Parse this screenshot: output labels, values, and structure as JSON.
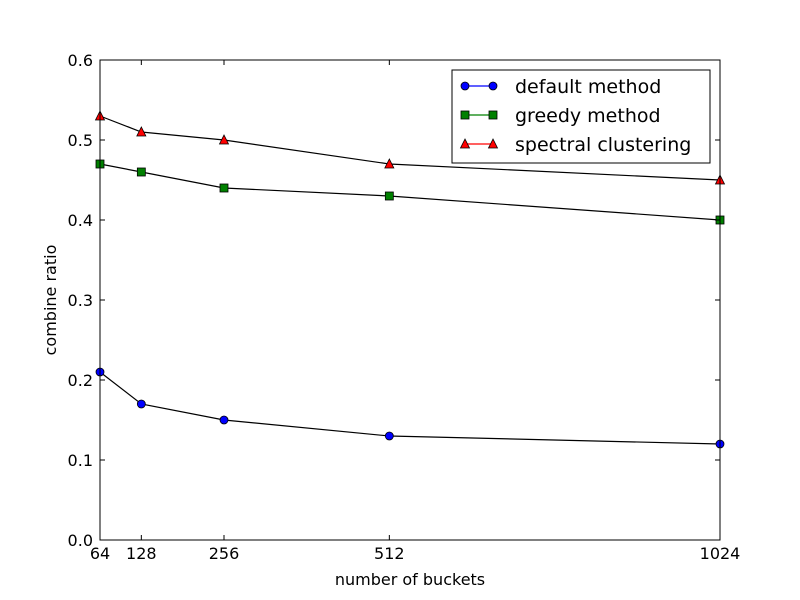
{
  "chart_data": {
    "type": "line",
    "title": "",
    "xlabel": "number of buckets",
    "ylabel": "combine ratio",
    "x": [
      64,
      128,
      256,
      512,
      1024
    ],
    "x_ticks": [
      "64",
      "128",
      "256",
      "512",
      "1024"
    ],
    "xlim": [
      64,
      1024
    ],
    "ylim": [
      0,
      0.6
    ],
    "y_ticks": [
      "0.0",
      "0.1",
      "0.2",
      "0.3",
      "0.4",
      "0.5",
      "0.6"
    ],
    "y_tick_values": [
      0,
      0.1,
      0.2,
      0.3,
      0.4,
      0.5,
      0.6
    ],
    "grid": false,
    "legend_position": "top-right",
    "series": [
      {
        "name": "default method",
        "marker": "circle",
        "color": "#0000ff",
        "values": [
          0.21,
          0.17,
          0.15,
          0.13,
          0.12
        ]
      },
      {
        "name": "greedy method",
        "marker": "square",
        "color": "#008000",
        "values": [
          0.47,
          0.46,
          0.44,
          0.43,
          0.4
        ]
      },
      {
        "name": "spectral clustering",
        "marker": "triangle",
        "color": "#ff0000",
        "values": [
          0.53,
          0.51,
          0.5,
          0.47,
          0.45
        ]
      }
    ]
  }
}
